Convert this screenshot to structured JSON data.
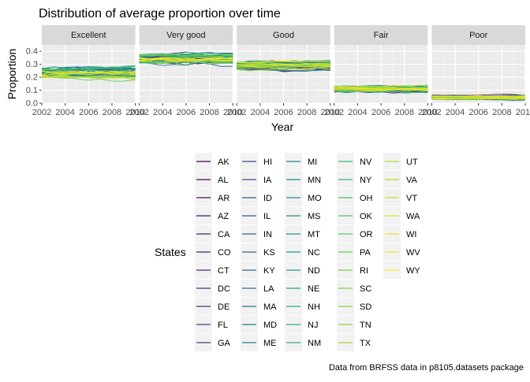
{
  "chart_data": {
    "type": "line",
    "title": "Distribution of average proportion over time",
    "xlabel": "Year",
    "ylabel": "Proportion",
    "caption": "Data from BRFSS data in p8105.datasets package",
    "facets": [
      "Excellent",
      "Very good",
      "Good",
      "Fair",
      "Poor"
    ],
    "x": [
      2002,
      2003,
      2004,
      2005,
      2006,
      2007,
      2008,
      2009,
      2010
    ],
    "x_ticks": [
      2002,
      2004,
      2006,
      2008,
      2010
    ],
    "x_tick_labels": [
      "2002",
      "2004",
      "2006",
      "2008",
      "2010"
    ],
    "xlim": [
      2002,
      2010
    ],
    "ylim": [
      0,
      0.45
    ],
    "y_ticks": [
      0.0,
      0.1,
      0.2,
      0.3,
      0.4
    ],
    "y_tick_labels": [
      "0.0",
      "0.1",
      "0.2",
      "0.3",
      "0.4"
    ],
    "grid": true,
    "legend": {
      "title": "States",
      "position": "bottom",
      "columns": 5,
      "rows": 11,
      "palette": "viridis",
      "colors": [
        "#440154",
        "#482878",
        "#3e4989",
        "#31688e",
        "#26828e",
        "#1f9e89",
        "#35b779",
        "#6ece58",
        "#b5de2b",
        "#fde725"
      ]
    },
    "states": [
      "AK",
      "AL",
      "AR",
      "AZ",
      "CA",
      "CO",
      "CT",
      "DC",
      "DE",
      "FL",
      "GA",
      "HI",
      "IA",
      "ID",
      "IL",
      "IN",
      "KS",
      "KY",
      "LA",
      "MA",
      "MD",
      "ME",
      "MI",
      "MN",
      "MO",
      "MS",
      "MT",
      "NC",
      "ND",
      "NE",
      "NH",
      "NJ",
      "NM",
      "NV",
      "NY",
      "OH",
      "OK",
      "OR",
      "PA",
      "RI",
      "SC",
      "SD",
      "TN",
      "TX",
      "UT",
      "VA",
      "VT",
      "WA",
      "WI",
      "WV",
      "WY"
    ],
    "panel_bands": {
      "Excellent": {
        "center": 0.235,
        "spread": 0.045,
        "min": 0.14,
        "max": 0.29
      },
      "Very good": {
        "center": 0.345,
        "spread": 0.04,
        "min": 0.26,
        "max": 0.43
      },
      "Good": {
        "center": 0.29,
        "spread": 0.035,
        "min": 0.22,
        "max": 0.37
      },
      "Fair": {
        "center": 0.105,
        "spread": 0.03,
        "min": 0.04,
        "max": 0.19
      },
      "Poor": {
        "center": 0.045,
        "spread": 0.016,
        "min": 0.01,
        "max": 0.09
      }
    }
  }
}
